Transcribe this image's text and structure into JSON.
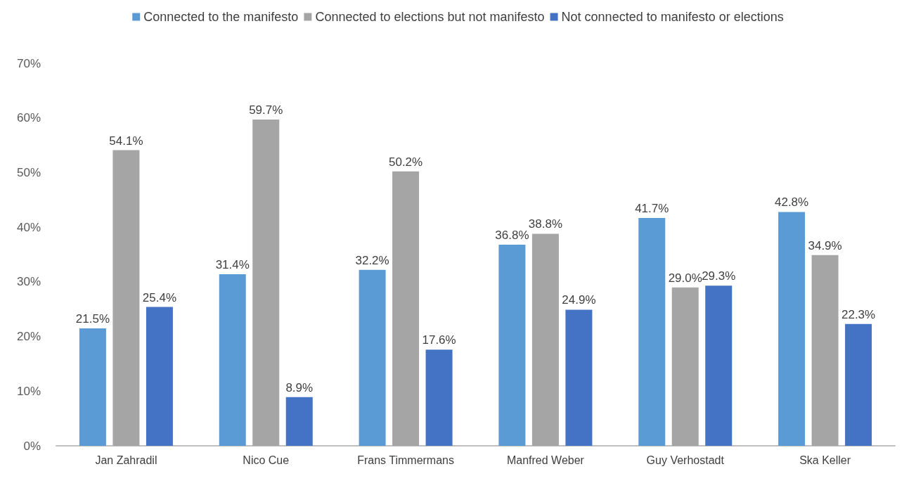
{
  "chart_data": {
    "type": "bar",
    "categories": [
      "Jan Zahradil",
      "Nico Cue",
      "Frans Timmermans",
      "Manfred Weber",
      "Guy Verhostadt",
      "Ska Keller"
    ],
    "series": [
      {
        "name": "Connected to the manifesto",
        "color": "#5b9bd5",
        "values": [
          21.5,
          31.4,
          32.2,
          36.8,
          41.7,
          42.8
        ],
        "value_labels": [
          "21.5%",
          "31.4%",
          "32.2%",
          "36.8%",
          "41.7%",
          "42.8%"
        ]
      },
      {
        "name": "Connected to elections but not manifesto",
        "color": "#a5a5a5",
        "values": [
          54.1,
          59.7,
          50.2,
          38.8,
          29.0,
          34.9
        ],
        "value_labels": [
          "54.1%",
          "59.7%",
          "50.2%",
          "38.8%",
          "29.0%",
          "34.9%"
        ]
      },
      {
        "name": "Not connected to manifesto or elections",
        "color": "#4472c4",
        "values": [
          25.4,
          8.9,
          17.6,
          24.9,
          29.3,
          22.3
        ],
        "value_labels": [
          "25.4%",
          "8.9%",
          "17.6%",
          "24.9%",
          "29.3%",
          "22.3%"
        ]
      }
    ],
    "ylim": [
      0,
      70
    ],
    "yticks": [
      {
        "value": 0,
        "label": "0%"
      },
      {
        "value": 10,
        "label": "10%"
      },
      {
        "value": 20,
        "label": "20%"
      },
      {
        "value": 30,
        "label": "30%"
      },
      {
        "value": 40,
        "label": "40%"
      },
      {
        "value": 50,
        "label": "50%"
      },
      {
        "value": 60,
        "label": "60%"
      },
      {
        "value": 70,
        "label": "70%"
      }
    ],
    "grid": false,
    "legend": "top"
  }
}
